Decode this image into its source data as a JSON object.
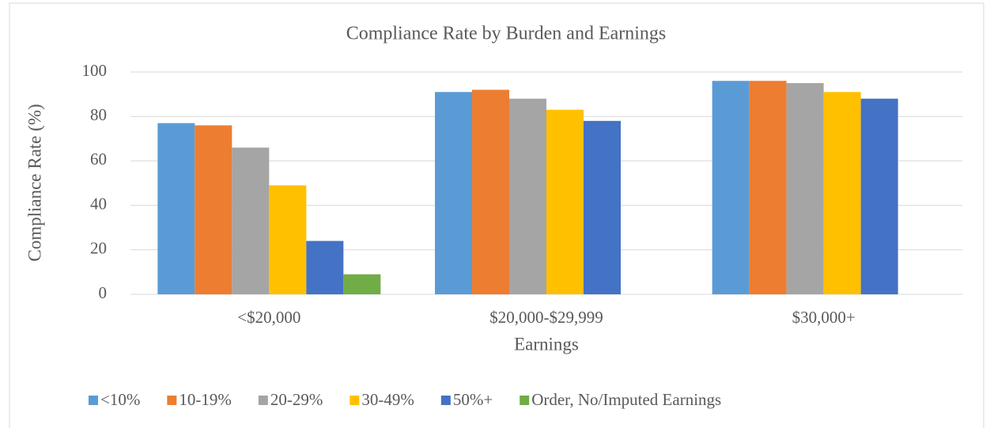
{
  "chart_data": {
    "type": "bar",
    "title": "Compliance Rate by Burden and Earnings",
    "x_label": "Earnings",
    "y_label": "Compliance Rate (%)",
    "categories": [
      "<$20,000",
      "$20,000-$29,999",
      "$30,000+"
    ],
    "series": [
      {
        "name": "<10%",
        "color": "#5b9bd5",
        "values": [
          77,
          91,
          96
        ]
      },
      {
        "name": "10-19%",
        "color": "#ed7d31",
        "values": [
          76,
          92,
          96
        ]
      },
      {
        "name": "20-29%",
        "color": "#a5a5a5",
        "values": [
          66,
          88,
          95
        ]
      },
      {
        "name": "30-49%",
        "color": "#ffc000",
        "values": [
          49,
          83,
          91
        ]
      },
      {
        "name": "50%+",
        "color": "#4472c4",
        "values": [
          24,
          78,
          88
        ]
      },
      {
        "name": "Order, No/Imputed Earnings",
        "color": "#70ad47",
        "values": [
          9,
          null,
          null
        ]
      }
    ],
    "ylim": [
      0,
      100
    ],
    "yticks": [
      0,
      20,
      40,
      60,
      80,
      100
    ],
    "grid": true,
    "legend": "bottom"
  }
}
